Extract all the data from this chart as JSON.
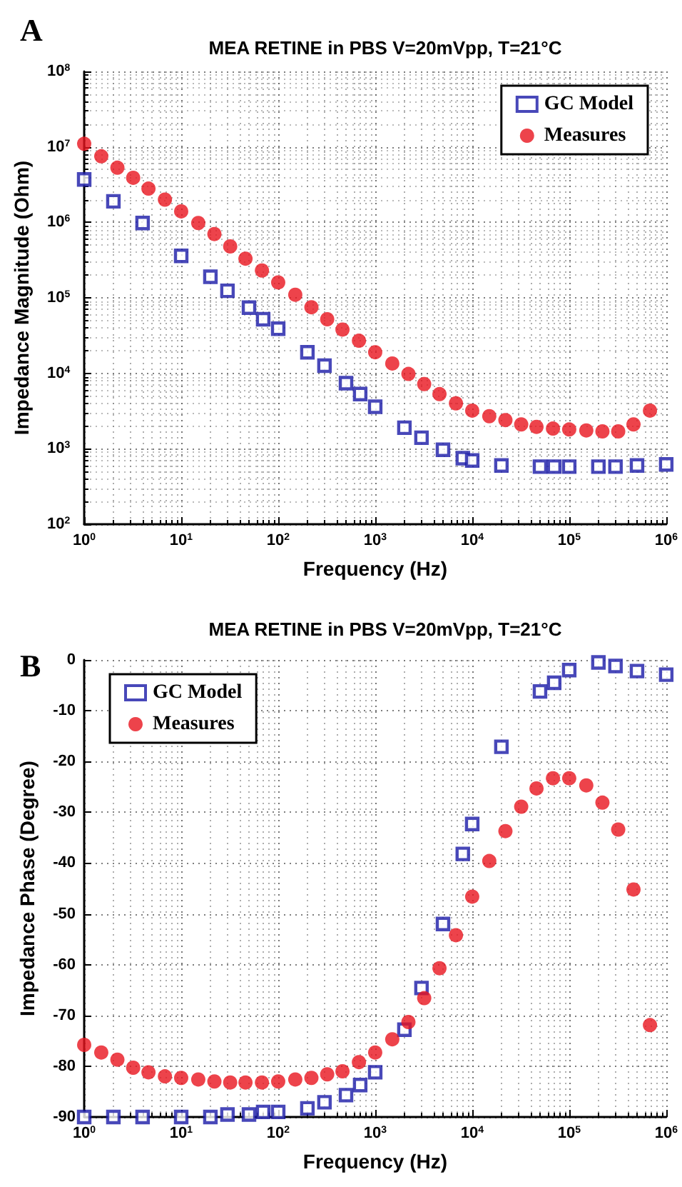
{
  "chart_data": [
    {
      "type": "scatter",
      "title": "MEA RETINE in PBS V=20mVpp, T=21°C",
      "xlabel": "Frequency (Hz)",
      "ylabel": "Impedance Magnitude (Ohm)",
      "annotations": [
        "A"
      ],
      "log": "xy",
      "grid": true,
      "legend": "top right",
      "xlim": [
        1,
        1000000
      ],
      "xticks": [
        {
          "value": 1,
          "label": "10$^{0}$"
        },
        {
          "value": 10,
          "label": "10$^{1}$"
        },
        {
          "value": 100,
          "label": "10$^{2}$"
        },
        {
          "value": 1000,
          "label": "10$^{3}$"
        },
        {
          "value": 10000,
          "label": "10$^{4}$"
        },
        {
          "value": 100000,
          "label": "10$^{5}$"
        },
        {
          "value": 1000000,
          "label": "10$^{6}$"
        }
      ],
      "ylim": [
        100,
        100000000
      ],
      "yticks": [
        {
          "value": 100,
          "label": "10$^{2}$"
        },
        {
          "value": 1000,
          "label": "10$^{3}$"
        },
        {
          "value": 10000,
          "label": "10$^{4}$"
        },
        {
          "value": 100000,
          "label": "10$^{5}$"
        },
        {
          "value": 1000000,
          "label": "10$^{6}$"
        },
        {
          "value": 10000000,
          "label": "10$^{7}$"
        },
        {
          "value": 100000000,
          "label": "10$^{8}$"
        }
      ],
      "series": [
        {
          "name": "GC Model",
          "color": "#1a1aa8",
          "marker": "square",
          "x": [
            1,
            2,
            4,
            10,
            20,
            30,
            50,
            70,
            100,
            200,
            300,
            500,
            700,
            1000,
            2000,
            3000,
            5000,
            8000,
            10000,
            20000,
            50000,
            70000,
            100000,
            200000,
            300000,
            500000,
            1000000
          ],
          "values": [
            3700000,
            1900000,
            980000,
            360000,
            190000,
            124000,
            74000,
            52000,
            39000,
            19000,
            12600,
            7400,
            5300,
            3600,
            1900,
            1400,
            970,
            750,
            700,
            600,
            580,
            580,
            580,
            580,
            580,
            600,
            620
          ]
        },
        {
          "name": "Measures",
          "color": "#e8141e",
          "marker": "circle",
          "x": [
            1,
            1.5,
            2.2,
            3.2,
            4.6,
            6.8,
            10,
            15,
            22,
            32,
            46,
            68,
            100,
            150,
            220,
            320,
            460,
            680,
            1000,
            1500,
            2200,
            3200,
            4600,
            6800,
            10000,
            15000,
            22000,
            32000,
            46000,
            68000,
            100000,
            150000,
            220000,
            320000,
            460000,
            680000
          ],
          "values": [
            11000000,
            7500000,
            5300000,
            3900000,
            2800000,
            2000000,
            1400000,
            980000,
            700000,
            480000,
            330000,
            230000,
            160000,
            110000,
            75000,
            52000,
            38000,
            27000,
            19000,
            13500,
            9800,
            7200,
            5300,
            4000,
            3200,
            2700,
            2400,
            2100,
            1950,
            1850,
            1800,
            1750,
            1700,
            1700,
            2100,
            3200
          ]
        }
      ]
    },
    {
      "type": "scatter",
      "title": "MEA RETINE in PBS V=20mVpp, T=21°C",
      "xlabel": "Frequency (Hz)",
      "ylabel": "Impedance Phase (Degree)",
      "annotations": [
        "B"
      ],
      "log": "x",
      "grid": true,
      "legend": "top left",
      "xlim": [
        1,
        1000000
      ],
      "xticks": [
        {
          "value": 1,
          "label": "10$^{0}$"
        },
        {
          "value": 10,
          "label": "10$^{1}$"
        },
        {
          "value": 100,
          "label": "10$^{2}$"
        },
        {
          "value": 1000,
          "label": "10$^{3}$"
        },
        {
          "value": 10000,
          "label": "10$^{4}$"
        },
        {
          "value": 100000,
          "label": "10$^{5}$"
        },
        {
          "value": 1000000,
          "label": "10$^{6}$"
        }
      ],
      "ylim": [
        -90,
        0
      ],
      "yticks": [
        -90,
        -80,
        -70,
        -60,
        -50,
        -40,
        -30,
        -20,
        -10,
        0
      ],
      "series": [
        {
          "name": "GC Model",
          "color": "#1a1aa8",
          "marker": "square",
          "x": [
            1,
            2,
            4,
            10,
            20,
            30,
            50,
            70,
            100,
            200,
            300,
            500,
            700,
            1000,
            2000,
            3000,
            5000,
            8000,
            10000,
            20000,
            50000,
            70000,
            100000,
            200000,
            300000,
            500000,
            1000000
          ],
          "values": [
            -90,
            -90,
            -90,
            -90,
            -90,
            -89.5,
            -89.5,
            -89,
            -89,
            -88.3,
            -87.1,
            -85.7,
            -83.7,
            -81.2,
            -72.8,
            -64.6,
            -52,
            -38.2,
            -32.3,
            -17.1,
            -6.2,
            -4.5,
            -2,
            -0.5,
            -1.2,
            -2.2,
            -2.9
          ]
        },
        {
          "name": "Measures",
          "color": "#e8141e",
          "marker": "circle",
          "x": [
            1,
            1.5,
            2.2,
            3.2,
            4.6,
            6.8,
            10,
            15,
            22,
            32,
            46,
            68,
            100,
            150,
            220,
            320,
            460,
            680,
            1000,
            1500,
            2200,
            3200,
            4600,
            6800,
            10000,
            15000,
            22000,
            32000,
            46000,
            68000,
            100000,
            150000,
            220000,
            320000,
            460000,
            680000
          ],
          "values": [
            -75.8,
            -77.3,
            -78.7,
            -80.3,
            -81.2,
            -82,
            -82.3,
            -82.6,
            -83,
            -83.2,
            -83.2,
            -83.2,
            -83,
            -82.6,
            -82.3,
            -81.6,
            -81,
            -79.2,
            -77.3,
            -74.7,
            -71.3,
            -66.6,
            -60.7,
            -54.2,
            -46.6,
            -39.6,
            -33.7,
            -28.9,
            -25.3,
            -23.3,
            -23.3,
            -24.7,
            -28.1,
            -33.4,
            -45.2,
            -71.9
          ]
        }
      ]
    }
  ]
}
